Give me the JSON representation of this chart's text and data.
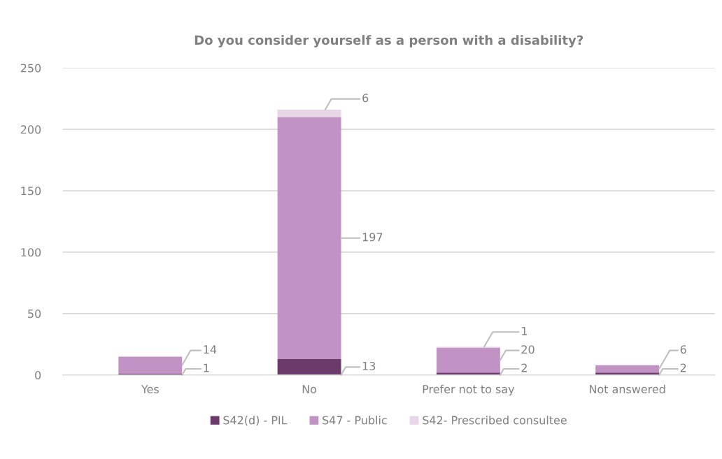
{
  "chart_data": {
    "type": "bar",
    "title": "Do you consider yourself as a person with a disability?",
    "categories": [
      "Yes",
      "No",
      "Prefer not to say",
      "Not answered"
    ],
    "series": [
      {
        "name": "S42(d) - PIL",
        "color": "#6b3a6b",
        "values": [
          1,
          13,
          2,
          2
        ]
      },
      {
        "name": "S47 - Public",
        "color": "#c193c4",
        "values": [
          14,
          197,
          20,
          6
        ]
      },
      {
        "name": "S42- Prescribed consultee",
        "color": "#e8d6e8",
        "values": [
          null,
          6,
          1,
          null
        ]
      }
    ],
    "stacked": true,
    "ylim": [
      0,
      250
    ],
    "yticks": [
      0,
      50,
      100,
      150,
      200,
      250
    ],
    "grid": "y",
    "legend": "bottom",
    "data_labels": true
  }
}
